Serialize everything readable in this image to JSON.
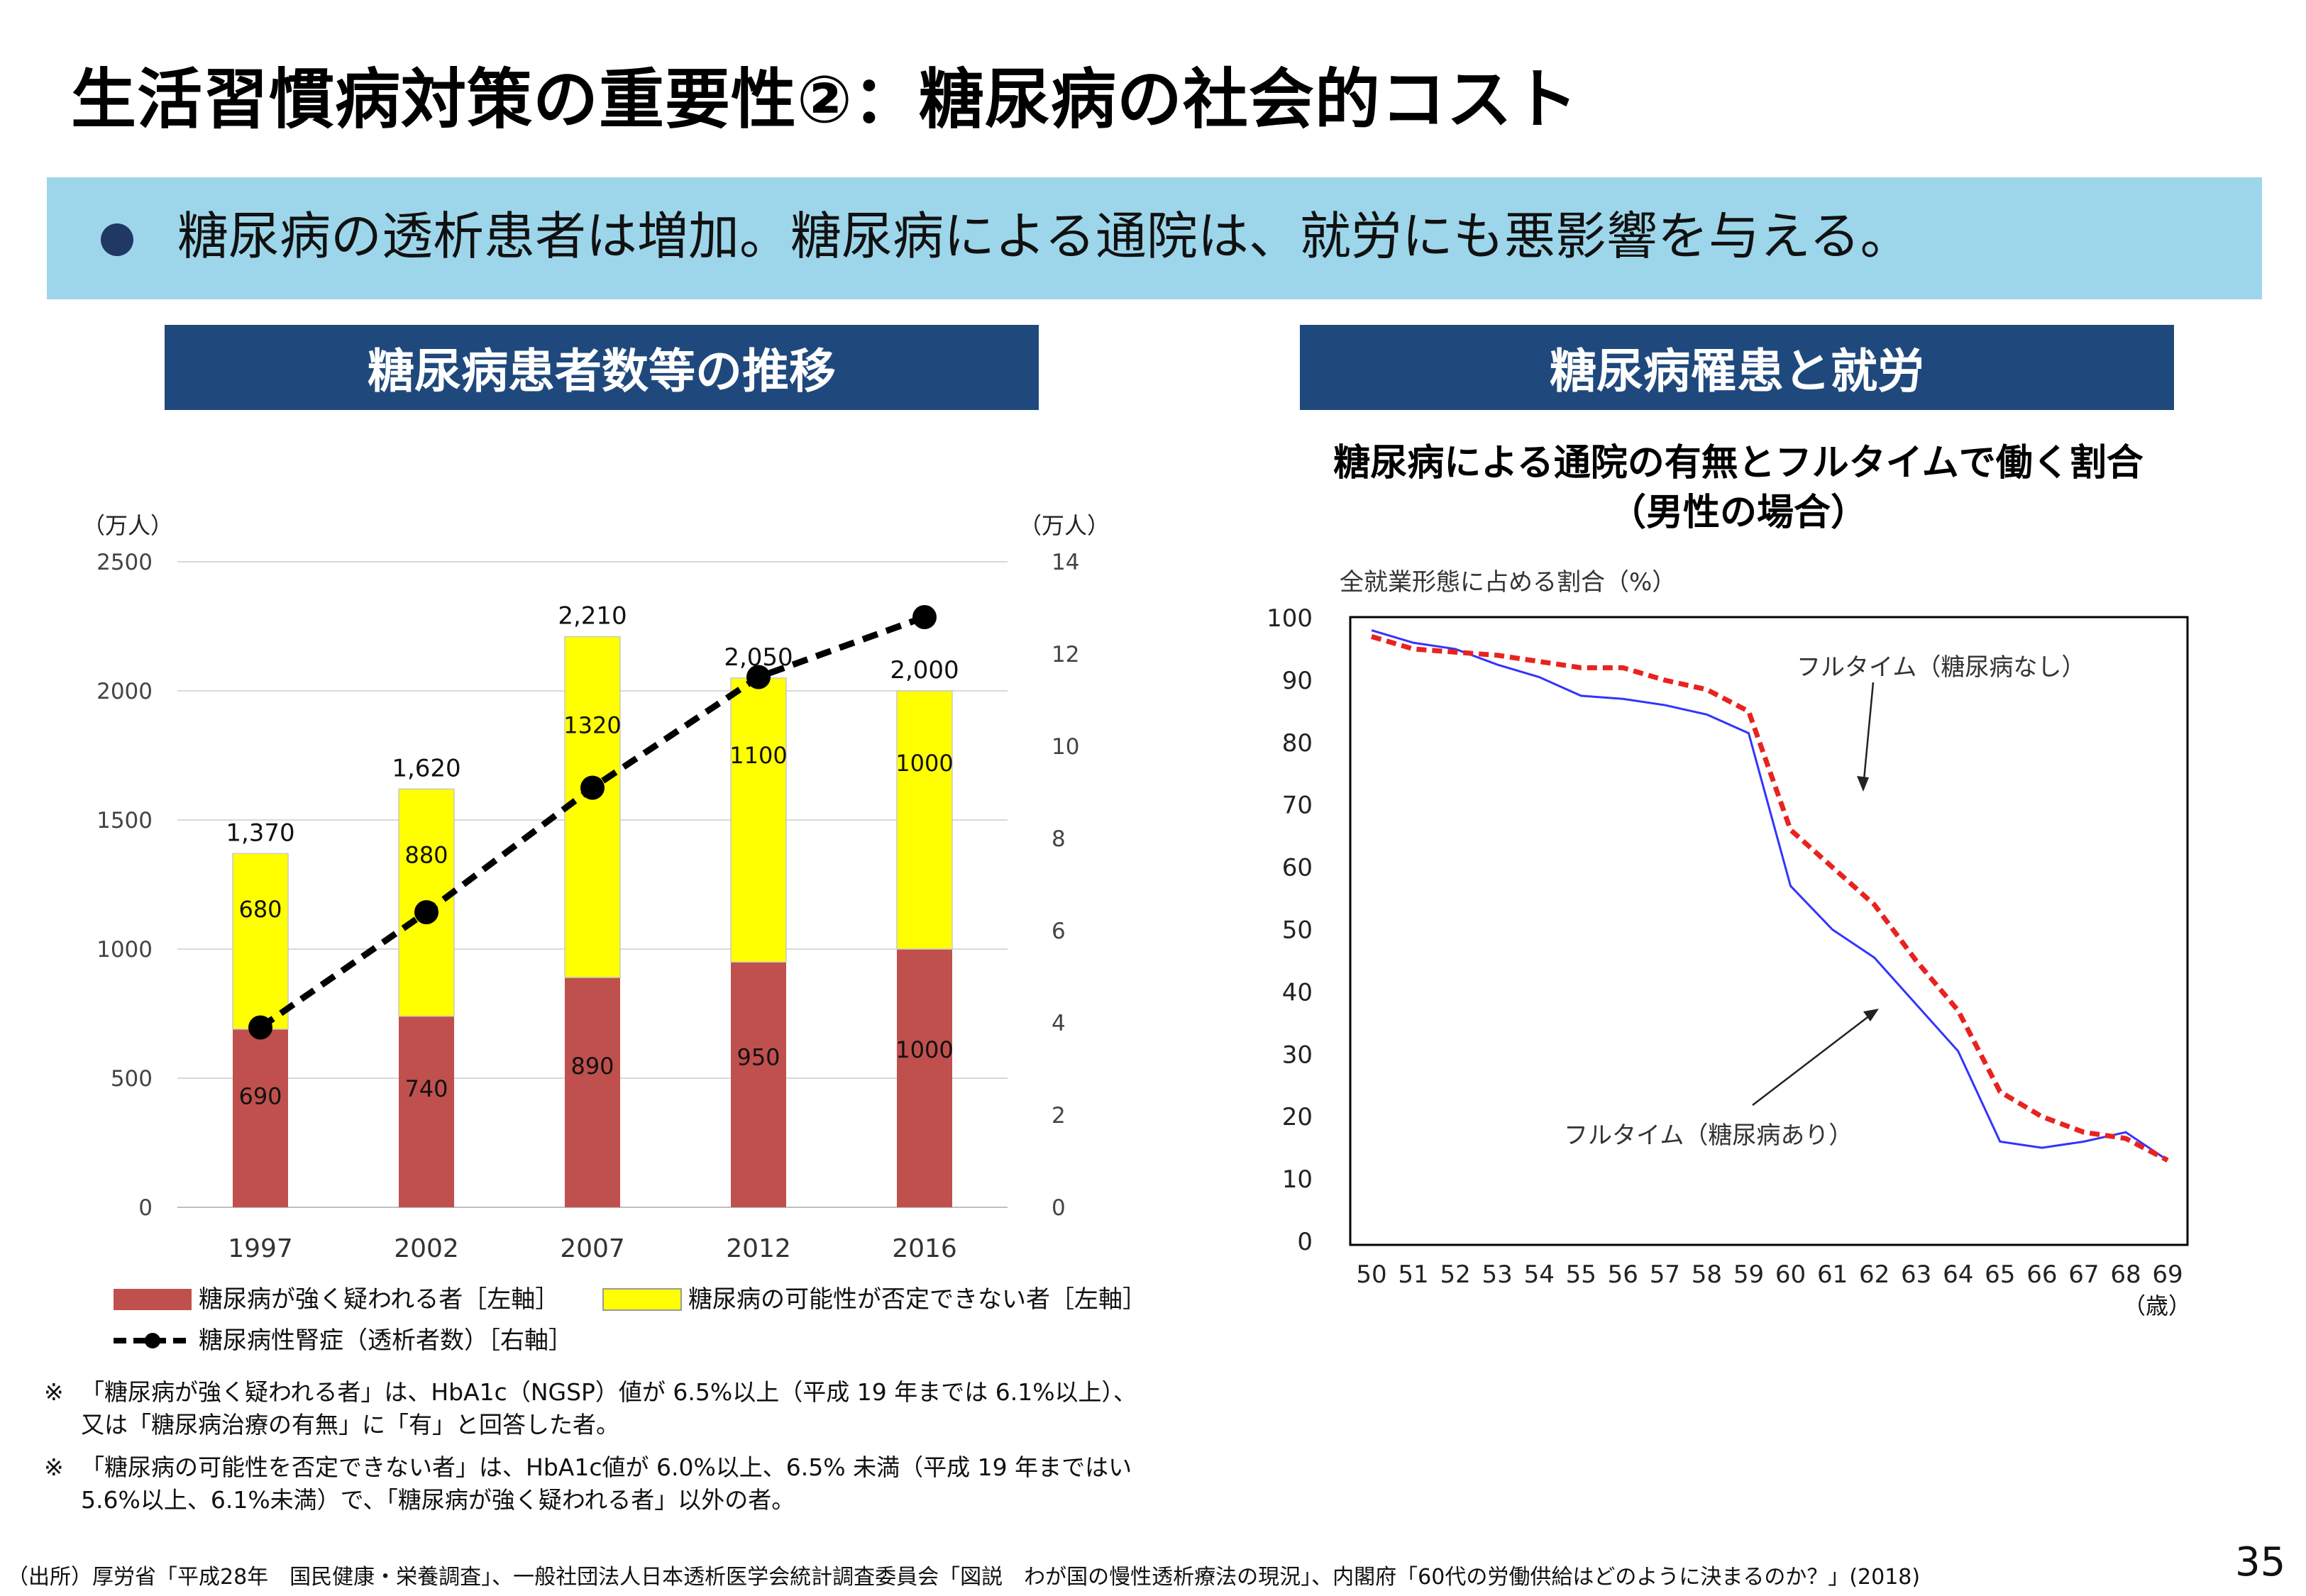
{
  "slide": {
    "title": "生活習慣病対策の重要性②：糖尿病の社会的コスト",
    "banner": "糖尿病の透析患者は増加。糖尿病による通院は、就労にも悪影響を与える。",
    "page_number": "35",
    "source": "（出所）厚労省「平成28年　国民健康・栄養調査」、一般社団法人日本透析医学会統計調査委員会「図説　わが国の慢性透析療法の現況」、内閣府「60代の労働供給はどのように決まるのか？」(2018)"
  },
  "left_panel": {
    "header": "糖尿病患者数等の推移",
    "left_axis_unit": "（万人）",
    "right_axis_unit": "（万人）",
    "legend": {
      "strong": "糖尿病が強く疑われる者［左軸］",
      "possible": "糖尿病の可能性が否定できない者［左軸］",
      "dialysis": "糖尿病性腎症（透析者数）［右軸］"
    }
  },
  "right_panel": {
    "header": "糖尿病罹患と就労",
    "chart_title_line1": "糖尿病による通院の有無とフルタイムで働く割合",
    "chart_title_line2": "（男性の場合）",
    "y_caption": "全就業形態に占める割合（%）",
    "x_unit": "（歳）",
    "annotation_no_diabetes": "フルタイム（糖尿病なし）",
    "annotation_diabetes": "フルタイム（糖尿病あり）"
  },
  "notes": [
    {
      "mark": "※",
      "text": "「糖尿病が強く疑われる者」は、HbA1c（NGSP）値が 6.5%以上（平成 19 年までは 6.1%以上）、又は「糖尿病治療の有無」に「有」と回答した者。"
    },
    {
      "mark": "※",
      "text": "「糖尿病の可能性を否定できない者」は、HbA1c値が 6.0%以上、6.5% 未満（平成 19 年まではい5.6%以上、6.1%未満）で、「糖尿病が強く疑われる者」以外の者。"
    }
  ],
  "chart_data": [
    {
      "type": "bar",
      "stacked": true,
      "categories": [
        "1997",
        "2002",
        "2007",
        "2012",
        "2016"
      ],
      "series": [
        {
          "name": "糖尿病が強く疑われる者［左軸］",
          "values": [
            690,
            740,
            890,
            950,
            1000
          ],
          "labels": [
            "690",
            "740",
            "890",
            "950",
            "1000"
          ],
          "color": "#c0504d",
          "axis": "left"
        },
        {
          "name": "糖尿病の可能性が否定できない者［左軸］",
          "values": [
            680,
            880,
            1320,
            1100,
            1000
          ],
          "labels": [
            "680",
            "880",
            "1320",
            "1100",
            "1000"
          ],
          "color": "#ffff00",
          "axis": "left"
        },
        {
          "name": "糖尿病性腎症（透析者数）［右軸］",
          "type": "line",
          "values": [
            3.9,
            6.4,
            9.1,
            11.5,
            12.8
          ],
          "color": "#000000",
          "style": "dashed",
          "axis": "right"
        }
      ],
      "totals": [
        "1,370",
        "1,620",
        "2,210",
        "2,050",
        "2,000"
      ],
      "total_values": [
        1370,
        1620,
        2210,
        2050,
        2000
      ],
      "ylim": [
        0,
        2500
      ],
      "yticks": [
        "0",
        "500",
        "1000",
        "1500",
        "2000",
        "2500"
      ],
      "y2lim": [
        0,
        14
      ],
      "y2ticks": [
        "0",
        "2",
        "4",
        "6",
        "8",
        "10",
        "12",
        "14"
      ],
      "grid": true,
      "legend": "bottom"
    },
    {
      "type": "line",
      "x": [
        50,
        51,
        52,
        53,
        54,
        55,
        56,
        57,
        58,
        59,
        60,
        61,
        62,
        63,
        64,
        65,
        66,
        67,
        68,
        69
      ],
      "xticks": [
        "50",
        "51",
        "52",
        "53",
        "54",
        "55",
        "56",
        "57",
        "58",
        "59",
        "60",
        "61",
        "62",
        "63",
        "64",
        "65",
        "66",
        "67",
        "68",
        "69"
      ],
      "series": [
        {
          "name": "フルタイム（糖尿病なし）",
          "values": [
            97,
            95,
            94.5,
            94,
            93,
            92,
            92,
            90,
            88.5,
            85,
            66,
            60,
            54,
            45,
            37,
            24,
            20,
            17.5,
            16.5,
            13
          ],
          "color": "#e8231f",
          "style": "dashed"
        },
        {
          "name": "フルタイム（糖尿病あり）",
          "values": [
            98,
            96,
            95,
            92.5,
            90.5,
            87.5,
            87,
            86,
            84.5,
            81.5,
            57,
            50,
            45.5,
            38,
            30.5,
            16,
            15,
            16,
            17.5,
            13
          ],
          "color": "#3333ff",
          "style": "solid"
        }
      ],
      "ylim": [
        0,
        100
      ],
      "yticks": [
        "0",
        "10",
        "20",
        "30",
        "40",
        "50",
        "60",
        "70",
        "80",
        "90",
        "100"
      ],
      "grid": false
    }
  ]
}
